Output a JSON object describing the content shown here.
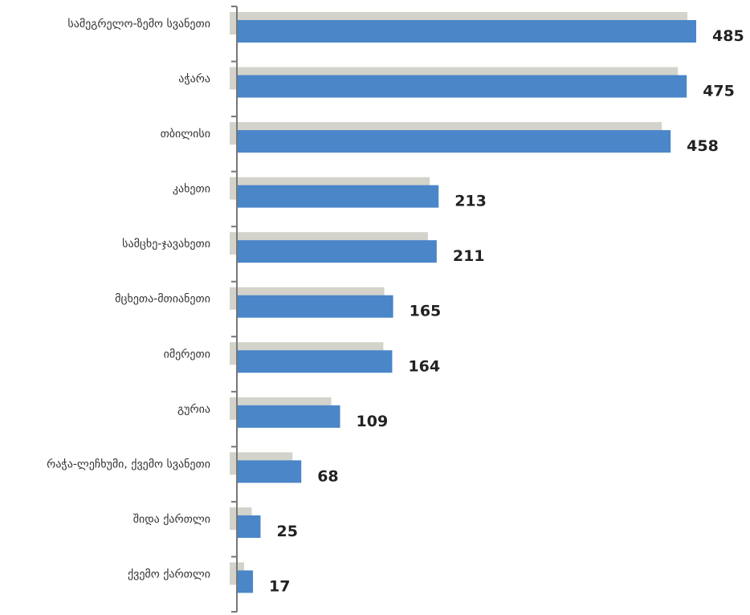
{
  "chart_data": {
    "type": "bar",
    "orientation": "horizontal",
    "categories": [
      "სამეგრელო-ზემო სვანეთი",
      "აჭარა",
      "თბილისი",
      "კახეთი",
      "სამცხე-ჯავახეთი",
      "მცხეთა-მთიანეთი",
      "იმერეთი",
      "გურია",
      "რაჭა-ლეჩხუმი, ქვემო სვანეთი",
      "შიდა ქართლი",
      "ქვემო ქართლი"
    ],
    "series": [
      {
        "values": [
          485,
          475,
          458,
          213,
          211,
          165,
          164,
          109,
          68,
          25,
          17
        ],
        "color": "#4a86c8"
      }
    ],
    "data_labels": [
      "485",
      "475",
      "458",
      "213",
      "211",
      "165",
      "164",
      "109",
      "68",
      "25",
      "17"
    ],
    "background_series": {
      "values": [
        485,
        475,
        458,
        213,
        211,
        165,
        164,
        109,
        68,
        25,
        17
      ],
      "color": "#d3d3cb"
    },
    "title": "",
    "xlabel": "",
    "ylabel": "",
    "xlim": [
      0,
      485
    ],
    "grid": false,
    "legend": "none"
  }
}
